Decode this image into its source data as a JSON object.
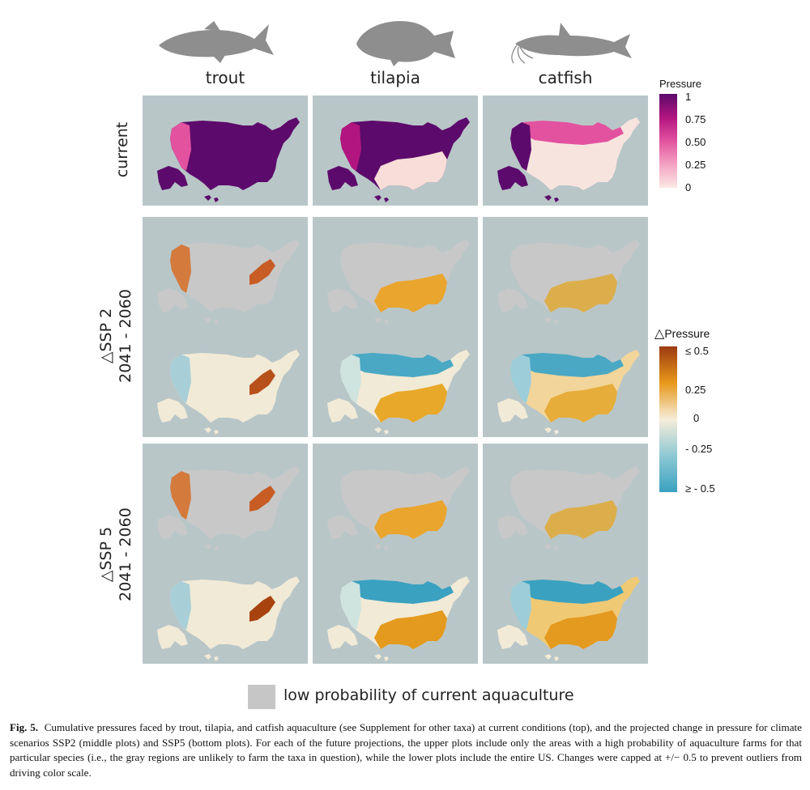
{
  "columns": [
    "trout",
    "tilapia",
    "catfish"
  ],
  "rows": {
    "current": "current",
    "ssp2_line1": "SSP 2",
    "ssp2_line2": "2041 - 2060",
    "ssp5_line1": "SSP 5",
    "ssp5_line2": "2041 - 2060",
    "delta_symbol": "△"
  },
  "legend_pressure": {
    "title": "Pressure",
    "ticks": [
      "1",
      "0.75",
      "0.50",
      "0.25",
      "0"
    ],
    "colors": [
      "#5c0a6b",
      "#b2157f",
      "#e2529f",
      "#f4a2c3",
      "#fbe9e4"
    ]
  },
  "legend_delta": {
    "title": "Pressure",
    "ticks": [
      "≤ 0.5",
      "0.25",
      "0",
      "- 0.25",
      "≥ - 0.5"
    ],
    "colors": [
      "#9b3a12",
      "#e8981a",
      "#f5edd9",
      "#8ec9d4",
      "#3aa1c0"
    ]
  },
  "gray_key_label": "low probability of current aquaculture",
  "caption": {
    "label": "Fig. 5.",
    "text": "Cumulative pressures faced by trout, tilapia, and catfish aquaculture (see Supplement for other taxa) at current conditions (top), and the projected change in pressure for climate scenarios SSP2 (middle plots) and SSP5 (bottom plots). For each of the future projections, the upper plots include only the areas with a high probability of aquaculture farms for that particular species (i.e., the gray regions are unlikely to farm the taxa in question), while the lower plots include the entire US. Changes were capped at +/− 0.5 to prevent outliers from driving color scale."
  },
  "icons": [
    "trout-silhouette-icon",
    "tilapia-silhouette-icon",
    "catfish-silhouette-icon"
  ]
}
